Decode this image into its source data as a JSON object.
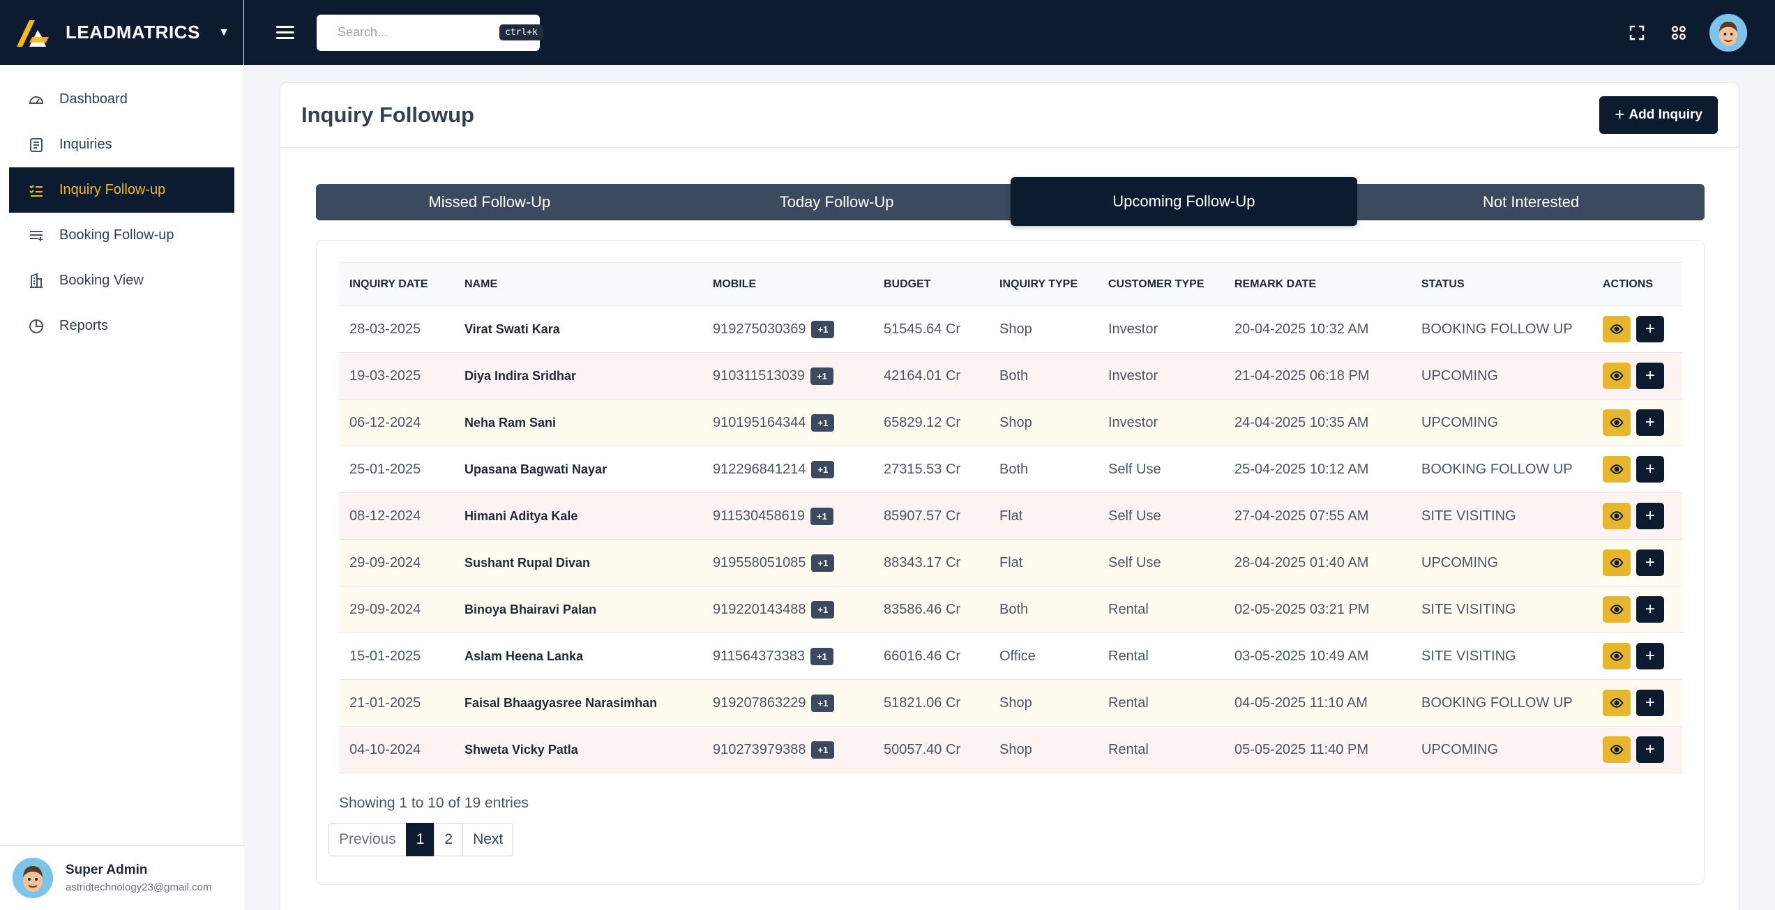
{
  "brand": {
    "name": "LEADMATRICS"
  },
  "sidebar": {
    "items": [
      {
        "label": "Dashboard",
        "icon": "dashboard-gauge-icon"
      },
      {
        "label": "Inquiries",
        "icon": "inquiries-doc-icon"
      },
      {
        "label": "Inquiry Follow-up",
        "icon": "checklist-icon",
        "active": true
      },
      {
        "label": "Booking Follow-up",
        "icon": "list-add-icon"
      },
      {
        "label": "Booking View",
        "icon": "building-icon"
      },
      {
        "label": "Reports",
        "icon": "pie-chart-icon"
      }
    ],
    "user": {
      "name": "Super Admin",
      "email": "astridtechnology23@gmail.com"
    }
  },
  "topbar": {
    "search_placeholder": "Search...",
    "shortcut": "ctrl+k"
  },
  "page": {
    "title": "Inquiry Followup",
    "add_button": "Add Inquiry"
  },
  "tabs": [
    {
      "label": "Missed Follow-Up"
    },
    {
      "label": "Today Follow-Up"
    },
    {
      "label": "Upcoming Follow-Up",
      "active": true
    },
    {
      "label": "Not Interested"
    }
  ],
  "table": {
    "headers": [
      "Inquiry Date",
      "Name",
      "Mobile",
      "Budget",
      "Inquiry Type",
      "Customer Type",
      "Remark Date",
      "Status",
      "Actions"
    ],
    "rows": [
      {
        "date": "28-03-2025",
        "name": "Virat Swati Kara",
        "mobile": "919275030369",
        "extra": "+1",
        "budget": "51545.64 Cr",
        "inquiry_type": "Shop",
        "customer_type": "Investor",
        "remark_date": "20-04-2025 10:32 AM",
        "status": "BOOKING FOLLOW UP",
        "tint": "white"
      },
      {
        "date": "19-03-2025",
        "name": "Diya Indira Sridhar",
        "mobile": "910311513039",
        "extra": "+1",
        "budget": "42164.01 Cr",
        "inquiry_type": "Both",
        "customer_type": "Investor",
        "remark_date": "21-04-2025 06:18 PM",
        "status": "UPCOMING",
        "tint": "pink"
      },
      {
        "date": "06-12-2024",
        "name": "Neha Ram Sani",
        "mobile": "910195164344",
        "extra": "+1",
        "budget": "65829.12 Cr",
        "inquiry_type": "Shop",
        "customer_type": "Investor",
        "remark_date": "24-04-2025 10:35 AM",
        "status": "UPCOMING",
        "tint": "cream"
      },
      {
        "date": "25-01-2025",
        "name": "Upasana Bagwati Nayar",
        "mobile": "912296841214",
        "extra": "+1",
        "budget": "27315.53 Cr",
        "inquiry_type": "Both",
        "customer_type": "Self Use",
        "remark_date": "25-04-2025 10:12 AM",
        "status": "BOOKING FOLLOW UP",
        "tint": "white"
      },
      {
        "date": "08-12-2024",
        "name": "Himani Aditya Kale",
        "mobile": "911530458619",
        "extra": "+1",
        "budget": "85907.57 Cr",
        "inquiry_type": "Flat",
        "customer_type": "Self Use",
        "remark_date": "27-04-2025 07:55 AM",
        "status": "SITE VISITING",
        "tint": "pink"
      },
      {
        "date": "29-09-2024",
        "name": "Sushant Rupal Divan",
        "mobile": "919558051085",
        "extra": "+1",
        "budget": "88343.17 Cr",
        "inquiry_type": "Flat",
        "customer_type": "Self Use",
        "remark_date": "28-04-2025 01:40 AM",
        "status": "UPCOMING",
        "tint": "cream"
      },
      {
        "date": "29-09-2024",
        "name": "Binoya Bhairavi Palan",
        "mobile": "919220143488",
        "extra": "+1",
        "budget": "83586.46 Cr",
        "inquiry_type": "Both",
        "customer_type": "Rental",
        "remark_date": "02-05-2025 03:21 PM",
        "status": "SITE VISITING",
        "tint": "cream"
      },
      {
        "date": "15-01-2025",
        "name": "Aslam Heena Lanka",
        "mobile": "911564373383",
        "extra": "+1",
        "budget": "66016.46 Cr",
        "inquiry_type": "Office",
        "customer_type": "Rental",
        "remark_date": "03-05-2025 10:49 AM",
        "status": "SITE VISITING",
        "tint": "white"
      },
      {
        "date": "21-01-2025",
        "name": "Faisal Bhaagyasree Narasimhan",
        "mobile": "919207863229",
        "extra": "+1",
        "budget": "51821.06 Cr",
        "inquiry_type": "Shop",
        "customer_type": "Rental",
        "remark_date": "04-05-2025 11:10 AM",
        "status": "BOOKING FOLLOW UP",
        "tint": "cream"
      },
      {
        "date": "04-10-2024",
        "name": "Shweta Vicky Patla",
        "mobile": "910273979388",
        "extra": "+1",
        "budget": "50057.40 Cr",
        "inquiry_type": "Shop",
        "customer_type": "Rental",
        "remark_date": "05-05-2025 11:40 PM",
        "status": "UPCOMING",
        "tint": "pink"
      }
    ]
  },
  "pagination": {
    "summary": "Showing 1 to 10 of 19 entries",
    "previous": "Previous",
    "pages": [
      "1",
      "2"
    ],
    "current": "1",
    "next": "Next"
  },
  "colors": {
    "navy": "#0d1b31",
    "accent": "#f5b814",
    "view_button": "#e8b62c"
  }
}
